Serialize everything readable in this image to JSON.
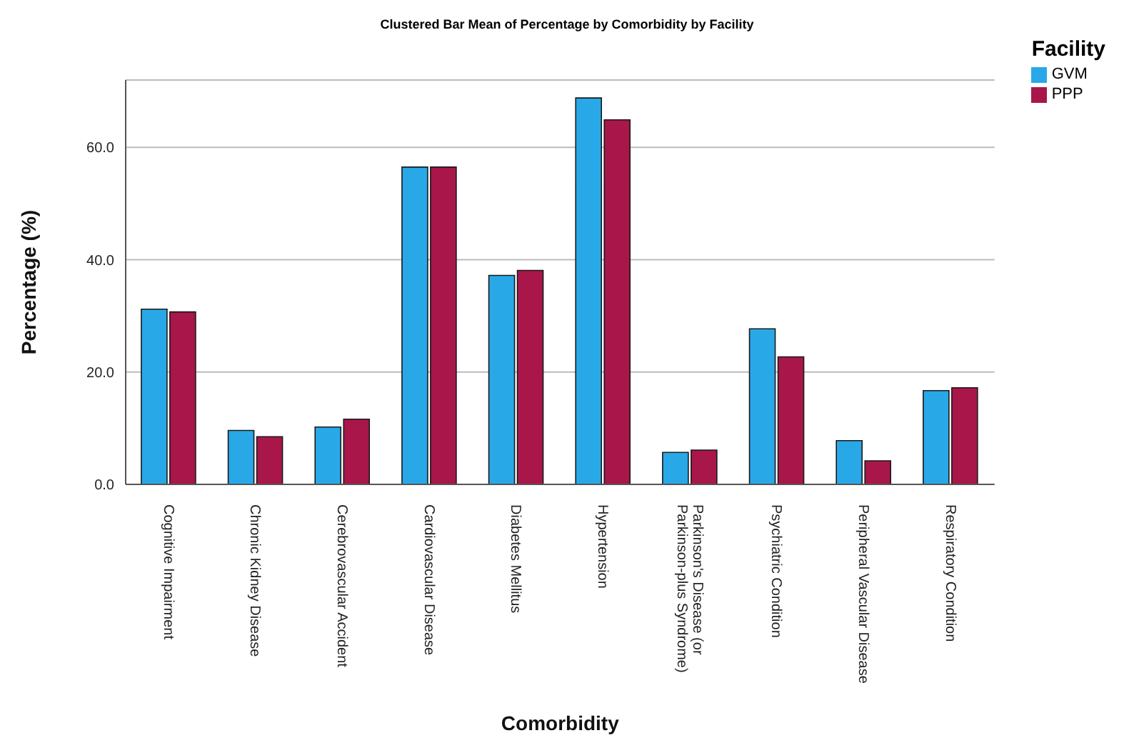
{
  "chart_data": {
    "type": "bar",
    "title": "Clustered Bar Mean of Percentage by Comorbidity by Facility",
    "xlabel": "Comorbidity",
    "ylabel": "Percentage (%)",
    "legend_title": "Facility",
    "categories": [
      "Cognitive Impairment",
      "Chronic Kidney Disease",
      "Cerebrovascular Accident",
      "Cardiovascular Disease",
      "Diabetes Mellitus",
      "Hypertension",
      "Parkinson's Disease (or Parkinson-plus Syndrome)",
      "Psychiatric Condition",
      "Peripheral Vascular Disease",
      "Respiratory Condition"
    ],
    "series": [
      {
        "name": "GVM",
        "color": "#29a8e8",
        "values": [
          31.2,
          9.6,
          10.2,
          56.5,
          37.2,
          68.8,
          5.7,
          27.7,
          7.8,
          16.7
        ]
      },
      {
        "name": "PPP",
        "color": "#a8164a",
        "values": [
          30.7,
          8.5,
          11.6,
          56.5,
          38.1,
          64.9,
          6.1,
          22.7,
          4.2,
          17.2
        ]
      }
    ],
    "ylim": [
      0,
      72
    ],
    "yticks": [
      {
        "value": 0,
        "label": "0.0"
      },
      {
        "value": 20,
        "label": "20.0"
      },
      {
        "value": 40,
        "label": "40.0"
      },
      {
        "value": 60,
        "label": "60.0"
      }
    ],
    "grid": "y",
    "legend": "top right"
  }
}
